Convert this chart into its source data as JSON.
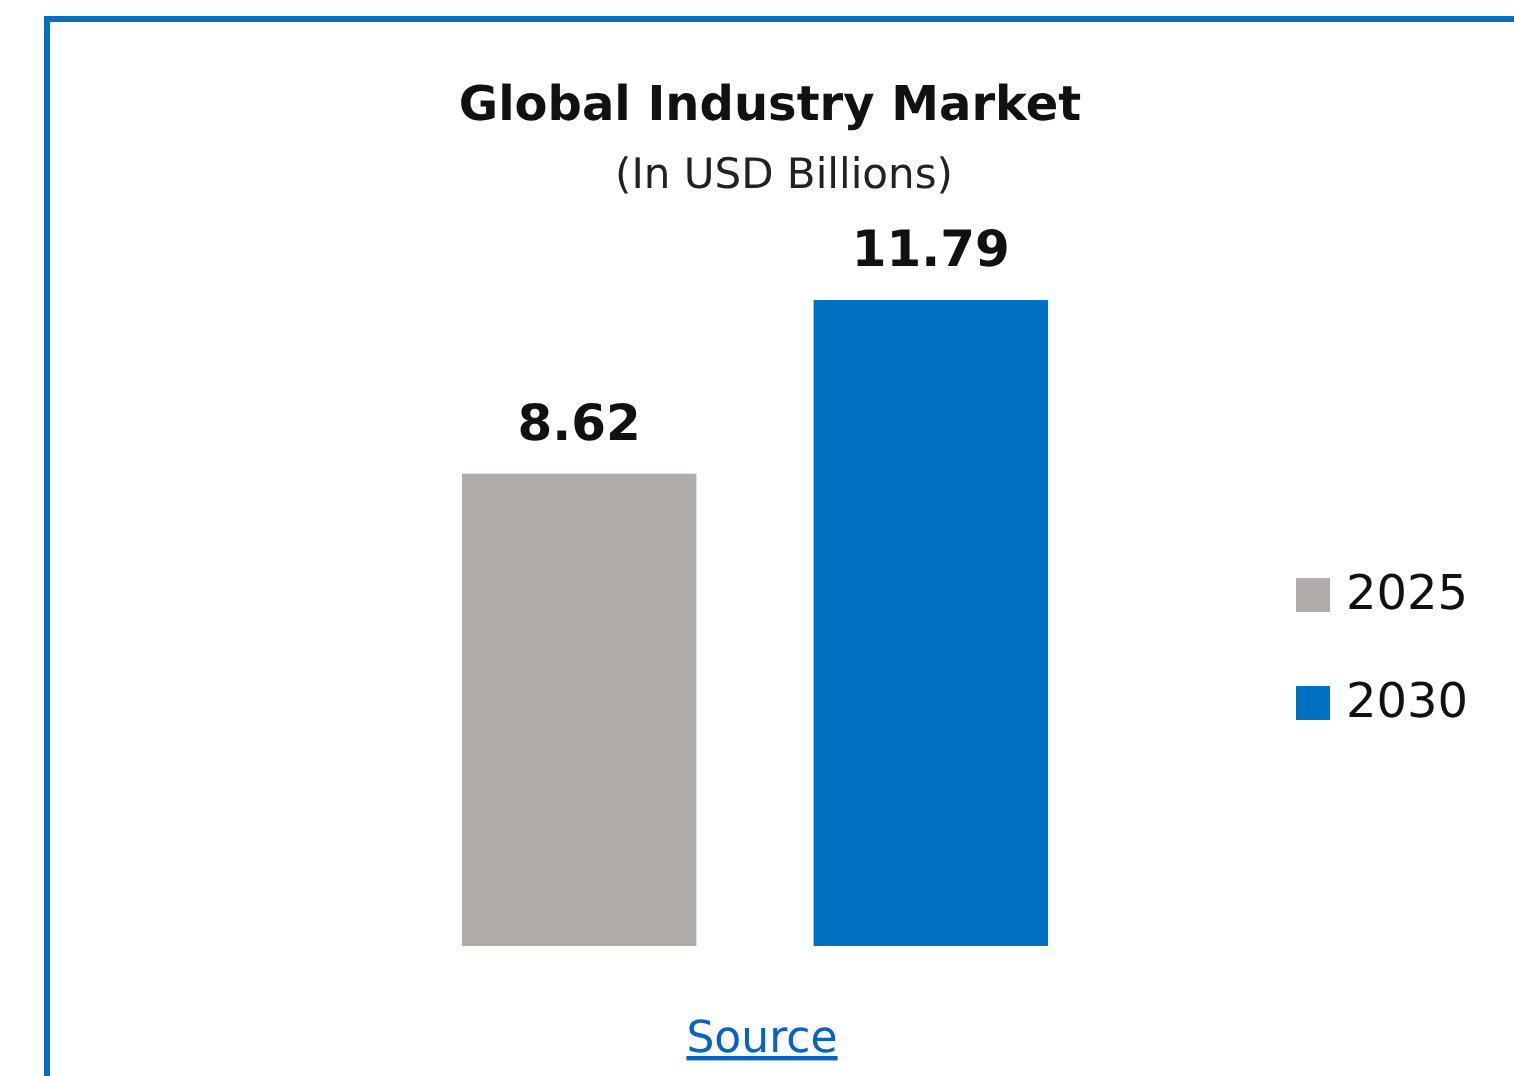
{
  "chart_data": {
    "type": "bar",
    "title": "Global Industry Market",
    "subtitle": "(In USD Billions)",
    "categories": [
      null
    ],
    "series": [
      {
        "name": "2025",
        "color": "#b0acaa",
        "values": [
          8.62
        ]
      },
      {
        "name": "2030",
        "color": "#0070c0",
        "values": [
          11.79
        ]
      }
    ],
    "data_labels": true,
    "legend": "right",
    "annotations": [
      "Source"
    ]
  }
}
